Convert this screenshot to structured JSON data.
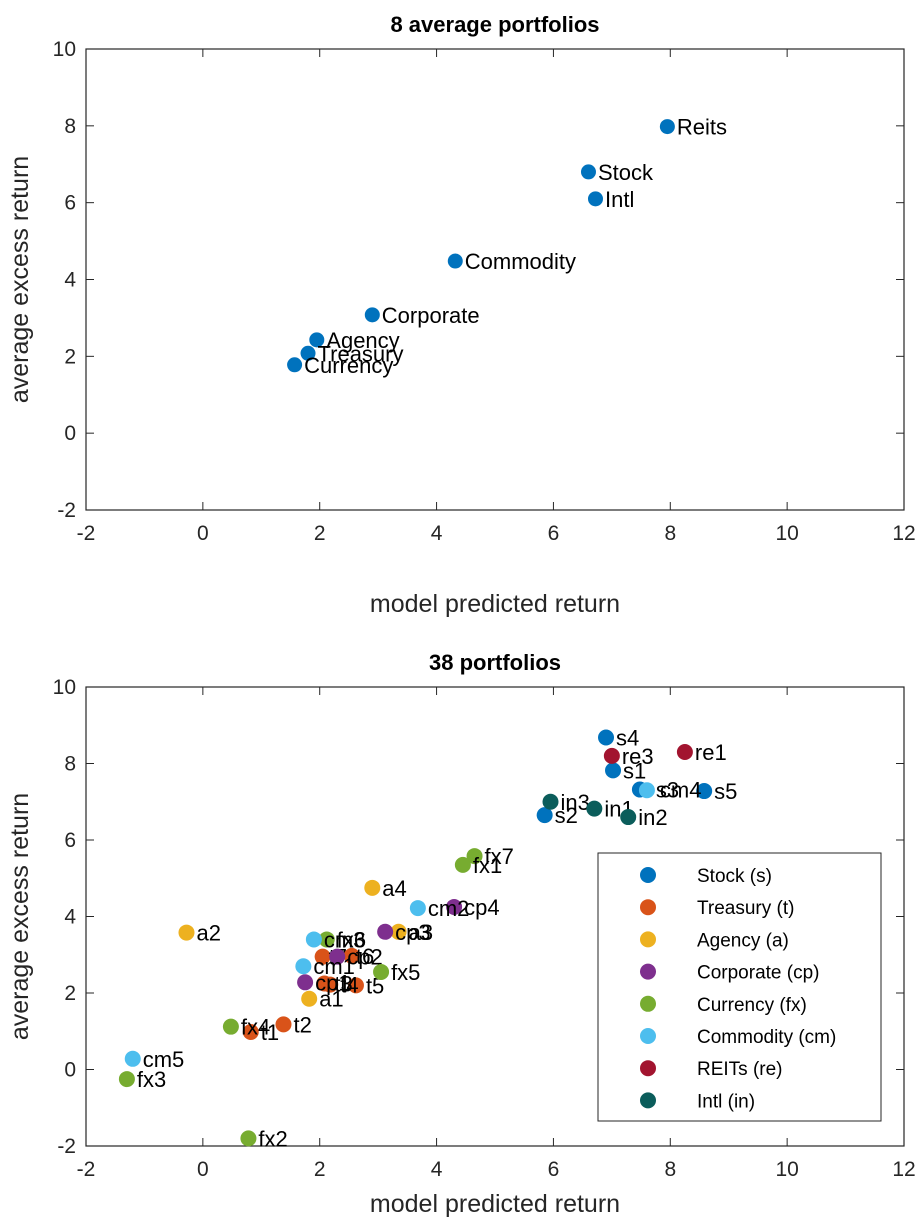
{
  "chart_data": [
    {
      "type": "scatter",
      "title": "8 average portfolios",
      "xlabel": "model predicted return",
      "ylabel": "average excess return",
      "xlim": [
        -2,
        12
      ],
      "ylim": [
        -2,
        10
      ],
      "xticks": [
        "-2",
        "0",
        "2",
        "4",
        "6",
        "8",
        "10",
        "12"
      ],
      "yticks": [
        "-2",
        "0",
        "2",
        "4",
        "6",
        "8",
        "10"
      ],
      "grid": false,
      "series": [
        {
          "color": "#0072BD",
          "points": [
            {
              "label": "Reits",
              "x": 7.95,
              "y": 7.98
            },
            {
              "label": "Stock",
              "x": 6.6,
              "y": 6.8
            },
            {
              "label": "Intl",
              "x": 6.72,
              "y": 6.1
            },
            {
              "label": "Commodity",
              "x": 4.32,
              "y": 4.48
            },
            {
              "label": "Corporate",
              "x": 2.9,
              "y": 3.08
            },
            {
              "label": "Agency",
              "x": 1.95,
              "y": 2.43
            },
            {
              "label": "Treasury",
              "x": 1.8,
              "y": 2.08
            },
            {
              "label": "Currency",
              "x": 1.57,
              "y": 1.78
            }
          ]
        }
      ]
    },
    {
      "type": "scatter",
      "title": "38 portfolios",
      "xlabel": "model predicted return",
      "ylabel": "average excess return",
      "xlim": [
        -2,
        12
      ],
      "ylim": [
        -2,
        10
      ],
      "xticks": [
        "-2",
        "0",
        "2",
        "4",
        "6",
        "8",
        "10",
        "12"
      ],
      "yticks": [
        "-2",
        "0",
        "2",
        "4",
        "6",
        "8",
        "10"
      ],
      "grid": false,
      "legend_position": "right",
      "series": [
        {
          "name": "Stock (s)",
          "color": "#0072BD",
          "points": [
            {
              "label": "s4",
              "x": 6.9,
              "y": 8.68
            },
            {
              "label": "s1",
              "x": 7.02,
              "y": 7.82
            },
            {
              "label": "s3",
              "x": 7.48,
              "y": 7.32
            },
            {
              "label": "s5",
              "x": 8.58,
              "y": 7.28
            },
            {
              "label": "s2",
              "x": 5.85,
              "y": 6.65
            }
          ]
        },
        {
          "name": "Treasury (t)",
          "color": "#D95319",
          "points": [
            {
              "label": "t7",
              "x": 2.05,
              "y": 2.95
            },
            {
              "label": "t6",
              "x": 2.55,
              "y": 2.97
            },
            {
              "label": "t5",
              "x": 2.62,
              "y": 2.2
            },
            {
              "label": "t4",
              "x": 2.18,
              "y": 2.22
            },
            {
              "label": "t3",
              "x": 2.08,
              "y": 2.25
            },
            {
              "label": "t2",
              "x": 1.38,
              "y": 1.18
            },
            {
              "label": "t1",
              "x": 0.82,
              "y": 0.98
            }
          ]
        },
        {
          "name": "Agency (a)",
          "color": "#EDB120",
          "points": [
            {
              "label": "a4",
              "x": 2.9,
              "y": 4.75
            },
            {
              "label": "a2",
              "x": -0.28,
              "y": 3.58
            },
            {
              "label": "a3",
              "x": 3.35,
              "y": 3.6
            },
            {
              "label": "a1",
              "x": 1.82,
              "y": 1.85
            }
          ]
        },
        {
          "name": "Corporate (cp)",
          "color": "#7E2F8E",
          "points": [
            {
              "label": "cp4",
              "x": 4.3,
              "y": 4.25
            },
            {
              "label": "cp3",
              "x": 3.12,
              "y": 3.6
            },
            {
              "label": "cp2",
              "x": 2.3,
              "y": 2.95
            },
            {
              "label": "cp1",
              "x": 1.75,
              "y": 2.28
            }
          ]
        },
        {
          "name": "Currency (fx)",
          "color": "#77AC30",
          "points": [
            {
              "label": "fx7",
              "x": 4.65,
              "y": 5.58
            },
            {
              "label": "fx1",
              "x": 4.45,
              "y": 5.35
            },
            {
              "label": "fx6",
              "x": 2.12,
              "y": 3.4
            },
            {
              "label": "fx5",
              "x": 3.05,
              "y": 2.55
            },
            {
              "label": "fx4",
              "x": 0.48,
              "y": 1.12
            },
            {
              "label": "fx3",
              "x": -1.3,
              "y": -0.25
            },
            {
              "label": "fx2",
              "x": 0.78,
              "y": -1.8
            }
          ]
        },
        {
          "name": "Commodity (cm)",
          "color": "#4DBEEE",
          "points": [
            {
              "label": "cm4",
              "x": 7.6,
              "y": 7.3
            },
            {
              "label": "cm2",
              "x": 3.68,
              "y": 4.22
            },
            {
              "label": "cm3",
              "x": 1.9,
              "y": 3.4
            },
            {
              "label": "cm1",
              "x": 1.72,
              "y": 2.7
            },
            {
              "label": "cm5",
              "x": -1.2,
              "y": 0.28
            }
          ]
        },
        {
          "name": "REITs (re)",
          "color": "#A2142F",
          "points": [
            {
              "label": "re1",
              "x": 8.25,
              "y": 8.3
            },
            {
              "label": "re3",
              "x": 7.0,
              "y": 8.2
            }
          ]
        },
        {
          "name": "Intl (in)",
          "color": "#0B5D5B",
          "points": [
            {
              "label": "in3",
              "x": 5.95,
              "y": 7.0
            },
            {
              "label": "in1",
              "x": 6.7,
              "y": 6.82
            },
            {
              "label": "in2",
              "x": 7.28,
              "y": 6.6
            }
          ]
        }
      ]
    }
  ]
}
